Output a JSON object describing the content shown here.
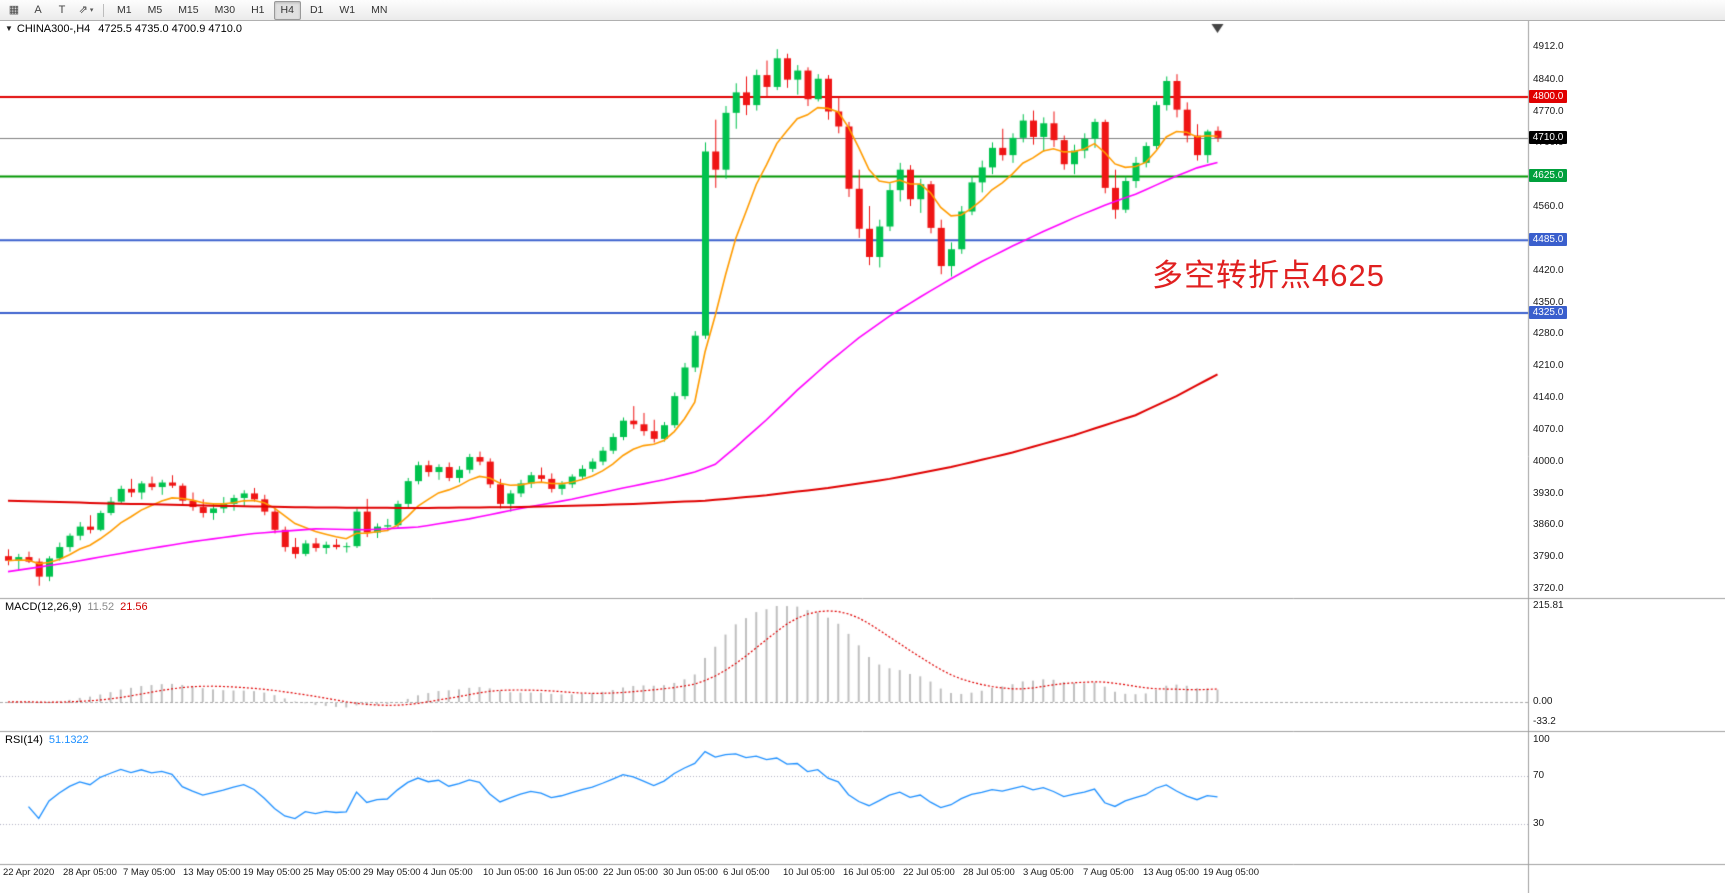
{
  "toolbar": {
    "tools": [
      {
        "id": "grid-tool",
        "glyph": "▦"
      },
      {
        "id": "annotate-text-tool",
        "glyph": "A"
      },
      {
        "id": "text-frame-tool",
        "glyph": "T"
      },
      {
        "id": "objects-tool",
        "glyph": "⇗",
        "dropdown_glyph": "▾"
      }
    ],
    "timeframes": [
      "M1",
      "M5",
      "M15",
      "M30",
      "H1",
      "H4",
      "D1",
      "W1",
      "MN"
    ],
    "active_timeframe": "H4"
  },
  "chart": {
    "collapse_glyph": "▼",
    "symbol_period": "CHINA300-,H4",
    "ohlc": "4725.5 4735.0 4700.9 4710.0"
  },
  "annotation": {
    "text": "多空转折点4625",
    "color": "#e02020"
  },
  "price_axis": {
    "ticks": [
      "4912.0",
      "4840.0",
      "4770.0",
      "4700.0",
      "4630.0",
      "4560.0",
      "4490.0",
      "4420.0",
      "4350.0",
      "4280.0",
      "4210.0",
      "4140.0",
      "4070.0",
      "4000.0",
      "3930.0",
      "3860.0",
      "3790.0",
      "3720.0"
    ]
  },
  "levels": [
    {
      "name": "resistance-line",
      "value": 4800.0,
      "label": "4800.0",
      "line_color": "#e00000",
      "line_width": 2,
      "badge_color": "#e00000"
    },
    {
      "name": "current-price-line",
      "value": 4710.0,
      "label": "4710.0",
      "line_color": "#808080",
      "line_width": 1,
      "badge_color": "#000000"
    },
    {
      "name": "pivot-line",
      "value": 4625.0,
      "label": "4625.0",
      "line_color": "#009600",
      "line_width": 2,
      "badge_color": "#00a03c"
    },
    {
      "name": "support-line-1",
      "value": 4485.0,
      "label": "4485.0",
      "line_color": "#3a5fcd",
      "line_width": 2,
      "badge_color": "#3a5fcd"
    },
    {
      "name": "support-line-2",
      "value": 4325.0,
      "label": "4325.0",
      "line_color": "#3a5fcd",
      "line_width": 2,
      "badge_color": "#3a5fcd"
    }
  ],
  "time_axis": {
    "labels": [
      "22 Apr 2020",
      "28 Apr 05:00",
      "7 May 05:00",
      "13 May 05:00",
      "19 May 05:00",
      "25 May 05:00",
      "29 May 05:00",
      "4 Jun 05:00",
      "10 Jun 05:00",
      "16 Jun 05:00",
      "22 Jun 05:00",
      "30 Jun 05:00",
      "6 Jul 05:00",
      "10 Jul 05:00",
      "16 Jul 05:00",
      "22 Jul 05:00",
      "28 Jul 05:00",
      "3 Aug 05:00",
      "7 Aug 05:00",
      "13 Aug 05:00",
      "19 Aug 05:00"
    ]
  },
  "macd": {
    "name": "MACD(12,26,9)",
    "value_main": "11.52",
    "value_signal": "21.56",
    "axis_labels": [
      "215.81",
      "0.00",
      "-33.2"
    ],
    "histogram_color": "#c0c0c0",
    "signal_color": "#e00000"
  },
  "rsi": {
    "name": "RSI(14)",
    "value": "51.1322",
    "axis_labels": [
      "100",
      "70",
      "30"
    ],
    "axis_values": [
      100,
      70,
      30
    ],
    "levels": [
      70,
      30
    ],
    "line_color": "#1e90ff"
  },
  "chart_data": {
    "type": "candlestick",
    "symbol": "CHINA300-",
    "period": "H4",
    "title": "CHINA300-,H4 4725.5 4735.0 4700.9 4710.0",
    "ylim": [
      3720,
      4912
    ],
    "up_color": "#00c24e",
    "down_color": "#ef1515",
    "candles": [
      [
        3790,
        3805,
        3770,
        3780
      ],
      [
        3780,
        3795,
        3760,
        3788
      ],
      [
        3788,
        3800,
        3775,
        3778
      ],
      [
        3778,
        3785,
        3725,
        3745
      ],
      [
        3745,
        3790,
        3735,
        3785
      ],
      [
        3785,
        3820,
        3780,
        3810
      ],
      [
        3810,
        3840,
        3800,
        3835
      ],
      [
        3835,
        3865,
        3825,
        3855
      ],
      [
        3855,
        3880,
        3840,
        3848
      ],
      [
        3848,
        3890,
        3845,
        3885
      ],
      [
        3885,
        3920,
        3880,
        3910
      ],
      [
        3910,
        3945,
        3905,
        3938
      ],
      [
        3938,
        3960,
        3920,
        3930
      ],
      [
        3930,
        3955,
        3915,
        3950
      ],
      [
        3950,
        3965,
        3935,
        3942
      ],
      [
        3942,
        3958,
        3925,
        3952
      ],
      [
        3952,
        3968,
        3940,
        3945
      ],
      [
        3945,
        3950,
        3905,
        3912
      ],
      [
        3912,
        3930,
        3890,
        3898
      ],
      [
        3898,
        3915,
        3875,
        3885
      ],
      [
        3885,
        3905,
        3870,
        3895
      ],
      [
        3895,
        3920,
        3885,
        3905
      ],
      [
        3905,
        3925,
        3890,
        3918
      ],
      [
        3918,
        3935,
        3900,
        3928
      ],
      [
        3928,
        3940,
        3910,
        3915
      ],
      [
        3915,
        3925,
        3880,
        3888
      ],
      [
        3888,
        3895,
        3840,
        3848
      ],
      [
        3848,
        3855,
        3800,
        3810
      ],
      [
        3810,
        3830,
        3785,
        3795
      ],
      [
        3795,
        3825,
        3790,
        3818
      ],
      [
        3818,
        3830,
        3800,
        3808
      ],
      [
        3808,
        3822,
        3795,
        3815
      ],
      [
        3815,
        3828,
        3805,
        3810
      ],
      [
        3810,
        3820,
        3798,
        3812
      ],
      [
        3812,
        3895,
        3808,
        3888
      ],
      [
        3888,
        3916,
        3832,
        3842
      ],
      [
        3842,
        3862,
        3830,
        3855
      ],
      [
        3855,
        3872,
        3845,
        3858
      ],
      [
        3858,
        3912,
        3852,
        3905
      ],
      [
        3905,
        3962,
        3898,
        3955
      ],
      [
        3955,
        3998,
        3948,
        3990
      ],
      [
        3990,
        4000,
        3965,
        3975
      ],
      [
        3975,
        3992,
        3958,
        3986
      ],
      [
        3986,
        3996,
        3955,
        3962
      ],
      [
        3962,
        3988,
        3952,
        3980
      ],
      [
        3980,
        4015,
        3972,
        4008
      ],
      [
        4008,
        4020,
        3990,
        3998
      ],
      [
        3998,
        4005,
        3940,
        3948
      ],
      [
        3948,
        3960,
        3895,
        3905
      ],
      [
        3905,
        3935,
        3888,
        3928
      ],
      [
        3928,
        3958,
        3920,
        3950
      ],
      [
        3950,
        3975,
        3940,
        3968
      ],
      [
        3968,
        3985,
        3952,
        3960
      ],
      [
        3960,
        3972,
        3930,
        3938
      ],
      [
        3938,
        3955,
        3925,
        3948
      ],
      [
        3948,
        3970,
        3940,
        3965
      ],
      [
        3965,
        3990,
        3958,
        3982
      ],
      [
        3982,
        4005,
        3975,
        3998
      ],
      [
        3998,
        4030,
        3990,
        4022
      ],
      [
        4022,
        4060,
        4015,
        4052
      ],
      [
        4052,
        4095,
        4045,
        4088
      ],
      [
        4088,
        4120,
        4070,
        4080
      ],
      [
        4080,
        4105,
        4055,
        4065
      ],
      [
        4065,
        4090,
        4040,
        4048
      ],
      [
        4048,
        4085,
        4042,
        4078
      ],
      [
        4078,
        4150,
        4072,
        4142
      ],
      [
        4142,
        4215,
        4135,
        4205
      ],
      [
        4205,
        4285,
        4195,
        4275
      ],
      [
        4275,
        4700,
        4268,
        4680
      ],
      [
        4680,
        4750,
        4600,
        4640
      ],
      [
        4640,
        4780,
        4620,
        4765
      ],
      [
        4765,
        4830,
        4730,
        4810
      ],
      [
        4810,
        4845,
        4760,
        4782
      ],
      [
        4782,
        4860,
        4770,
        4848
      ],
      [
        4848,
        4880,
        4800,
        4822
      ],
      [
        4822,
        4905,
        4815,
        4885
      ],
      [
        4885,
        4895,
        4820,
        4838
      ],
      [
        4838,
        4870,
        4805,
        4858
      ],
      [
        4858,
        4865,
        4780,
        4795
      ],
      [
        4795,
        4850,
        4790,
        4840
      ],
      [
        4840,
        4848,
        4750,
        4768
      ],
      [
        4768,
        4800,
        4720,
        4735
      ],
      [
        4735,
        4745,
        4580,
        4598
      ],
      [
        4598,
        4640,
        4490,
        4510
      ],
      [
        4510,
        4560,
        4430,
        4448
      ],
      [
        4448,
        4530,
        4425,
        4515
      ],
      [
        4515,
        4610,
        4505,
        4595
      ],
      [
        4595,
        4655,
        4570,
        4640
      ],
      [
        4640,
        4650,
        4560,
        4575
      ],
      [
        4575,
        4620,
        4545,
        4608
      ],
      [
        4608,
        4615,
        4500,
        4512
      ],
      [
        4512,
        4530,
        4410,
        4428
      ],
      [
        4428,
        4480,
        4405,
        4465
      ],
      [
        4465,
        4560,
        4455,
        4548
      ],
      [
        4548,
        4625,
        4540,
        4612
      ],
      [
        4612,
        4660,
        4590,
        4645
      ],
      [
        4645,
        4700,
        4630,
        4688
      ],
      [
        4688,
        4730,
        4660,
        4672
      ],
      [
        4672,
        4720,
        4655,
        4710
      ],
      [
        4710,
        4762,
        4700,
        4748
      ],
      [
        4748,
        4770,
        4695,
        4712
      ],
      [
        4712,
        4755,
        4680,
        4742
      ],
      [
        4742,
        4768,
        4690,
        4705
      ],
      [
        4705,
        4715,
        4640,
        4652
      ],
      [
        4652,
        4695,
        4630,
        4682
      ],
      [
        4682,
        4720,
        4665,
        4708
      ],
      [
        4708,
        4752,
        4688,
        4745
      ],
      [
        4745,
        4750,
        4588,
        4600
      ],
      [
        4600,
        4640,
        4532,
        4552
      ],
      [
        4552,
        4625,
        4545,
        4615
      ],
      [
        4615,
        4668,
        4600,
        4655
      ],
      [
        4655,
        4700,
        4645,
        4692
      ],
      [
        4692,
        4790,
        4685,
        4782
      ],
      [
        4782,
        4845,
        4770,
        4835
      ],
      [
        4835,
        4850,
        4755,
        4772
      ],
      [
        4772,
        4788,
        4700,
        4715
      ],
      [
        4715,
        4740,
        4660,
        4672
      ],
      [
        4672,
        4728,
        4655,
        4724
      ],
      [
        4725.5,
        4735,
        4700.9,
        4710
      ]
    ],
    "moving_averages": [
      {
        "name": "ma-fast",
        "color": "#ff9c00",
        "method": "ema",
        "period": 9
      },
      {
        "name": "ma-mid",
        "color": "#ff00ff",
        "points": [
          [
            0,
            3756
          ],
          [
            6,
            3776
          ],
          [
            12,
            3800
          ],
          [
            18,
            3822
          ],
          [
            24,
            3840
          ],
          [
            30,
            3850
          ],
          [
            35,
            3848
          ],
          [
            40,
            3854
          ],
          [
            45,
            3872
          ],
          [
            50,
            3895
          ],
          [
            55,
            3915
          ],
          [
            60,
            3940
          ],
          [
            64,
            3958
          ],
          [
            67,
            3975
          ],
          [
            69,
            3992
          ],
          [
            71,
            4030
          ],
          [
            74,
            4090
          ],
          [
            77,
            4155
          ],
          [
            80,
            4215
          ],
          [
            83,
            4270
          ],
          [
            86,
            4318
          ],
          [
            89,
            4360
          ],
          [
            92,
            4400
          ],
          [
            95,
            4438
          ],
          [
            98,
            4472
          ],
          [
            101,
            4504
          ],
          [
            104,
            4534
          ],
          [
            107,
            4562
          ],
          [
            110,
            4586
          ],
          [
            112,
            4606
          ],
          [
            114,
            4626
          ],
          [
            116,
            4644
          ],
          [
            118,
            4656
          ]
        ]
      },
      {
        "name": "ma-long",
        "color": "#e00000",
        "points": [
          [
            0,
            3912
          ],
          [
            10,
            3906
          ],
          [
            20,
            3901
          ],
          [
            30,
            3897
          ],
          [
            40,
            3896
          ],
          [
            50,
            3898
          ],
          [
            60,
            3904
          ],
          [
            68,
            3912
          ],
          [
            74,
            3924
          ],
          [
            80,
            3940
          ],
          [
            86,
            3960
          ],
          [
            92,
            3986
          ],
          [
            98,
            4018
          ],
          [
            104,
            4056
          ],
          [
            110,
            4100
          ],
          [
            114,
            4142
          ],
          [
            118,
            4190
          ]
        ]
      }
    ],
    "indicators": {
      "macd": {
        "fast": 12,
        "slow": 26,
        "signal": 9
      },
      "rsi": {
        "period": 14
      }
    }
  }
}
